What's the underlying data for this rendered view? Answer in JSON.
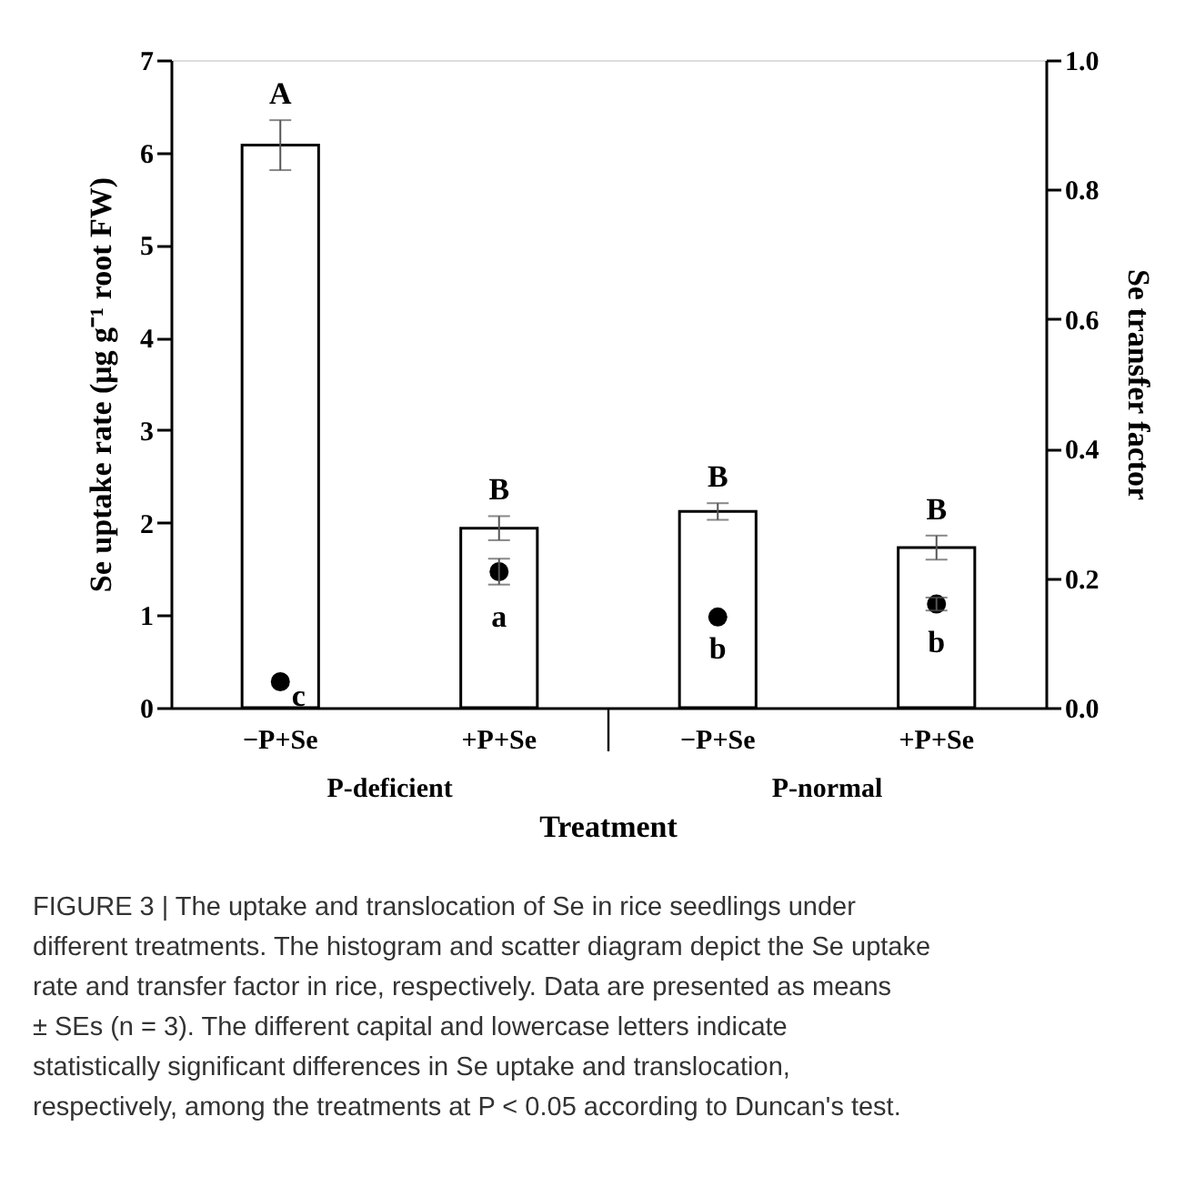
{
  "chart_data": {
    "type": "bar",
    "xlabel": "Treatment",
    "ylabel": "Se uptake rate (μg g⁻¹ root FW)",
    "y2label": "Se transfer factor",
    "categories": [
      "−P+Se",
      "+P+Se",
      "−P+Se",
      "+P+Se"
    ],
    "series": [
      {
        "color": "#ffffff",
        "values": [
          6.08,
          1.94,
          2.12,
          1.73
        ],
        "errors": [
          0.27,
          0.13,
          0.09,
          0.13
        ]
      },
      {
        "type": "scatter",
        "axis": "y2",
        "color": "#000000",
        "values": [
          0.04,
          0.21,
          0.14,
          0.16
        ],
        "errors": [
          null,
          0.02,
          null,
          0.01
        ]
      }
    ],
    "ylim": [
      0,
      7
    ],
    "yticks": [
      0,
      1,
      2,
      3,
      4,
      5,
      6,
      7
    ],
    "y2lim": [
      0,
      1
    ],
    "y2ticks": [
      {
        "value": 0,
        "label": "0.0"
      },
      0.2,
      0.4,
      0.6,
      0.8,
      {
        "value": 1,
        "label": "1.0"
      }
    ],
    "marker": "circle",
    "grid": false,
    "legend": false,
    "annotations": [
      "A",
      "B",
      "B",
      "B",
      "c",
      "a",
      "b",
      "b",
      "P-deficient",
      "P-normal",
      "FIGURE 3 | The uptake and translocation of Se in rice seedlings under different treatments. The histogram and scatter diagram depict the Se uptake rate and transfer factor in rice, respectively. Data are presented as means ± SEs (n = 3). The different capital and lowercase letters indicate statistically significant differences in Se uptake and translocation, respectively, among the treatments at P < 0.05 according to Duncan's test."
    ]
  }
}
